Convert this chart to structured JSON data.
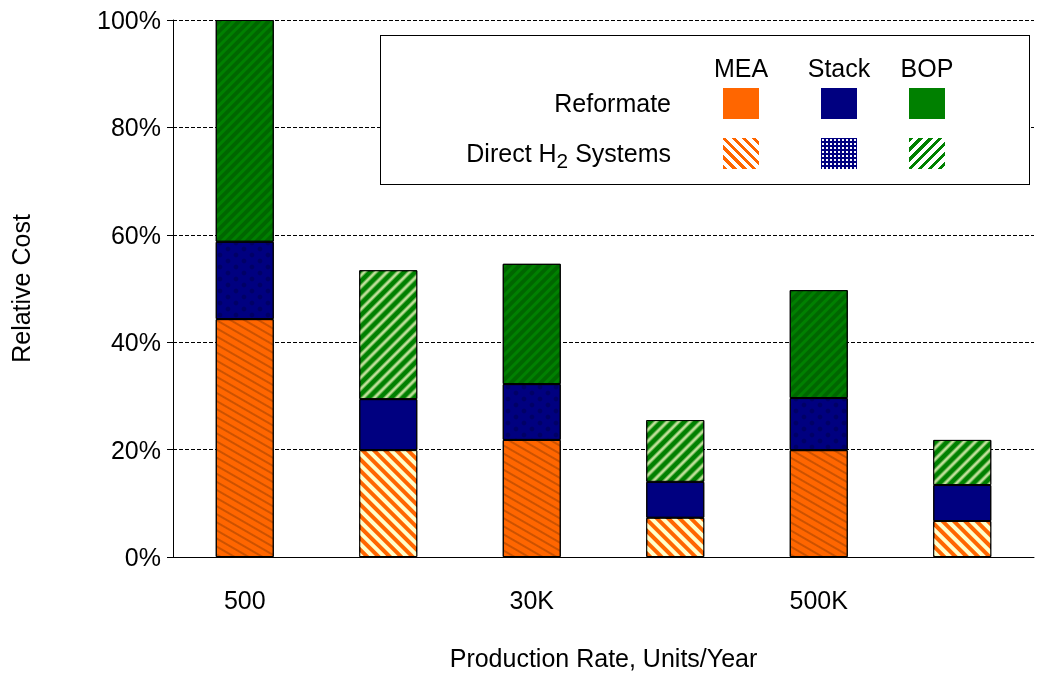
{
  "chart_data": {
    "type": "bar",
    "stacked": true,
    "xlabel": "Production Rate, Units/Year",
    "ylabel": "Relative Cost",
    "categories": [
      "500",
      null,
      "30K",
      null,
      "500K",
      null
    ],
    "ylim": [
      0,
      100
    ],
    "yticks": [
      {
        "value": 0,
        "label": "0%"
      },
      {
        "value": 20,
        "label": "20%"
      },
      {
        "value": 40,
        "label": "40%"
      },
      {
        "value": 60,
        "label": "60%"
      },
      {
        "value": 80,
        "label": "80%"
      },
      {
        "value": 100,
        "label": "100%"
      }
    ],
    "grid": "y",
    "annotations": [
      "MEA",
      "Stack",
      "BOP",
      "Reformate",
      "Direct H$_{2}$ Systems"
    ],
    "series": [
      {
        "color": "#ff6600",
        "values": [
          44.3,
          null,
          21.8,
          null,
          19.9,
          null
        ]
      },
      {
        "color": "#000080",
        "values": [
          14.4,
          null,
          10.4,
          null,
          9.7,
          null
        ]
      },
      {
        "color": "#008000",
        "values": [
          41.3,
          null,
          22.4,
          null,
          20.1,
          null
        ]
      },
      {
        "color": "#ff6600",
        "values": [
          null,
          19.9,
          null,
          7.3,
          null,
          6.7
        ]
      },
      {
        "color": "#000080",
        "values": [
          null,
          9.5,
          null,
          6.7,
          null,
          6.7
        ]
      },
      {
        "color": "#008000",
        "values": [
          null,
          24.0,
          null,
          11.5,
          null,
          8.4
        ]
      }
    ]
  }
}
